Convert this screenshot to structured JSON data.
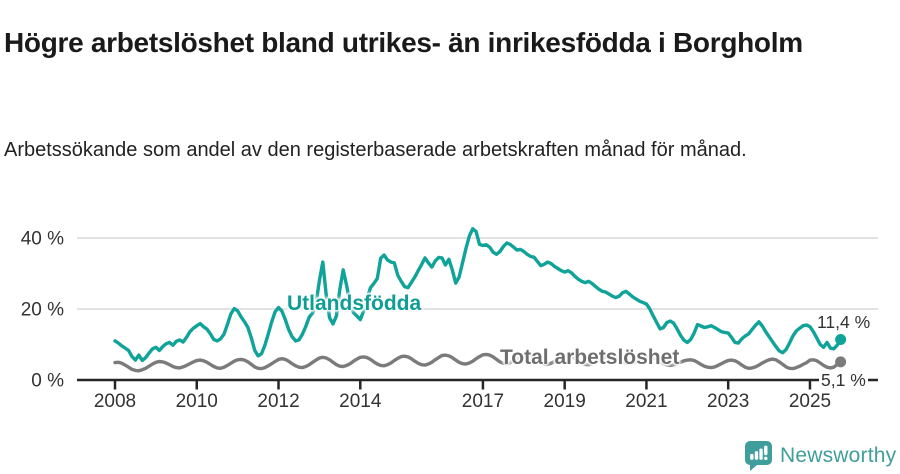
{
  "header": {
    "title": "Högre arbetslöshet bland utrikes- än inrikesfödda i Borgholm",
    "subtitle": "Arbetssökande som andel av den registerbaserade arbetskraften månad för månad."
  },
  "chart_data": {
    "type": "line",
    "title": "Högre arbetslöshet bland utrikes- än inrikesfödda i Borgholm",
    "ylabel": "",
    "xlabel": "",
    "unit": "%",
    "x_start_year": 2008,
    "x_step": "month",
    "x_end": "2025-10",
    "ylim": [
      0,
      47
    ],
    "grid": "horizontal",
    "y_ticks": [
      0,
      20,
      40
    ],
    "y_tick_labels": [
      "0 %",
      "20 %",
      "40 %"
    ],
    "x_tick_years": [
      2008,
      2010,
      2012,
      2014,
      2017,
      2019,
      2021,
      2023,
      2025
    ],
    "x_tick_labels": [
      "2008",
      "2010",
      "2012",
      "2014",
      "2017",
      "2019",
      "2021",
      "2023",
      "2025"
    ],
    "axis_color": "#262626",
    "gridline_color": "#d9d9d9",
    "tick_label_color": "#333333",
    "series": [
      {
        "id": "utlandsfodda",
        "name": "Utlandsfödda",
        "color": "#10a39a",
        "end_label": "11,4 %",
        "end_value": 11.4,
        "values": [
          11.0,
          10.4,
          9.6,
          9.0,
          8.3,
          6.6,
          5.6,
          7.0,
          5.5,
          6.3,
          7.6,
          8.8,
          9.2,
          8.3,
          9.4,
          10.2,
          10.6,
          9.8,
          10.9,
          11.3,
          10.7,
          12.0,
          13.6,
          14.6,
          15.3,
          15.9,
          15.0,
          14.3,
          13.0,
          11.4,
          11.0,
          11.6,
          12.9,
          15.6,
          18.6,
          20.1,
          19.5,
          17.8,
          16.4,
          14.8,
          11.9,
          8.4,
          6.8,
          7.4,
          9.8,
          13.0,
          16.4,
          19.2,
          20.4,
          19.4,
          17.0,
          14.2,
          12.2,
          11.0,
          11.3,
          12.9,
          15.1,
          17.7,
          18.9,
          21.5,
          28.0,
          33.2,
          24.0,
          17.5,
          15.8,
          18.0,
          25.5,
          31.0,
          26.5,
          21.5,
          19.0,
          18.0,
          17.0,
          19.5,
          23.0,
          26.0,
          27.2,
          28.6,
          34.3,
          35.2,
          33.8,
          33.2,
          33.0,
          29.5,
          27.8,
          26.3,
          26.0,
          27.5,
          29.0,
          30.8,
          32.5,
          34.4,
          33.0,
          31.8,
          33.5,
          34.5,
          34.4,
          32.4,
          34.0,
          31.0,
          27.3,
          29.0,
          33.0,
          37.0,
          40.5,
          42.6,
          41.8,
          38.2,
          37.9,
          38.1,
          37.4,
          36.0,
          35.4,
          36.2,
          37.6,
          38.6,
          38.2,
          37.4,
          36.6,
          36.8,
          36.2,
          35.4,
          34.8,
          34.6,
          33.4,
          32.2,
          32.6,
          33.2,
          32.8,
          32.0,
          31.4,
          30.8,
          30.4,
          30.8,
          30.2,
          29.2,
          28.4,
          27.8,
          27.4,
          27.8,
          27.2,
          26.4,
          25.6,
          25.0,
          24.8,
          24.2,
          23.6,
          23.2,
          23.6,
          24.6,
          25.0,
          24.2,
          23.4,
          22.8,
          22.2,
          21.8,
          21.4,
          20.0,
          18.0,
          16.2,
          14.4,
          14.8,
          16.2,
          16.6,
          16.0,
          14.4,
          12.6,
          11.2,
          10.6,
          11.4,
          13.2,
          15.6,
          15.2,
          14.8,
          15.0,
          15.3,
          14.8,
          14.2,
          13.6,
          13.4,
          13.2,
          12.0,
          10.6,
          10.4,
          11.6,
          12.4,
          13.0,
          14.2,
          15.4,
          16.4,
          15.2,
          13.6,
          12.2,
          10.8,
          9.4,
          8.2,
          7.7,
          8.6,
          10.4,
          12.4,
          13.8,
          14.6,
          15.3,
          15.5,
          15.0,
          13.6,
          11.8,
          10.0,
          9.2,
          10.6,
          9.0,
          8.8,
          9.8,
          11.4
        ]
      },
      {
        "id": "total",
        "name": "Total arbetslöshet",
        "color": "#7b7b7b",
        "end_label": "5,1 %",
        "end_value": 5.1,
        "values": [
          4.9,
          5.0,
          4.7,
          4.2,
          3.6,
          3.0,
          2.7,
          2.6,
          2.9,
          3.3,
          3.9,
          4.5,
          5.0,
          5.2,
          5.1,
          4.8,
          4.3,
          3.8,
          3.5,
          3.4,
          3.7,
          4.1,
          4.6,
          5.1,
          5.5,
          5.6,
          5.4,
          5.0,
          4.4,
          3.8,
          3.4,
          3.3,
          3.6,
          4.1,
          4.7,
          5.3,
          5.7,
          5.8,
          5.6,
          5.1,
          4.4,
          3.7,
          3.3,
          3.2,
          3.5,
          4.0,
          4.6,
          5.2,
          5.8,
          6.0,
          5.8,
          5.3,
          4.6,
          4.0,
          3.6,
          3.5,
          3.8,
          4.3,
          5.0,
          5.6,
          6.2,
          6.4,
          6.2,
          5.7,
          5.0,
          4.3,
          3.9,
          3.8,
          4.1,
          4.6,
          5.3,
          5.9,
          6.4,
          6.5,
          6.3,
          5.8,
          5.1,
          4.5,
          4.1,
          4.0,
          4.3,
          4.8,
          5.5,
          6.1,
          6.6,
          6.7,
          6.5,
          6.0,
          5.3,
          4.7,
          4.3,
          4.2,
          4.5,
          5.0,
          5.7,
          6.3,
          6.9,
          7.0,
          6.8,
          6.3,
          5.6,
          5.0,
          4.6,
          4.5,
          4.8,
          5.3,
          6.0,
          6.6,
          7.1,
          7.2,
          7.0,
          6.5,
          5.8,
          5.1,
          4.7,
          4.6,
          4.9,
          5.4,
          6.0,
          6.5,
          6.9,
          7.0,
          6.8,
          6.3,
          5.6,
          4.9,
          4.5,
          4.4,
          4.7,
          5.2,
          5.8,
          6.3,
          6.7,
          6.8,
          6.6,
          6.1,
          5.4,
          4.8,
          4.4,
          4.3,
          4.6,
          5.0,
          5.6,
          6.1,
          6.5,
          6.6,
          6.5,
          6.2,
          5.7,
          5.2,
          4.8,
          4.7,
          4.9,
          5.2,
          5.7,
          6.1,
          6.4,
          6.5,
          6.3,
          5.8,
          5.2,
          4.6,
          4.2,
          4.1,
          4.3,
          4.6,
          5.0,
          5.4,
          5.6,
          5.7,
          5.5,
          5.0,
          4.4,
          3.9,
          3.6,
          3.5,
          3.7,
          4.1,
          4.6,
          5.1,
          5.5,
          5.6,
          5.4,
          4.9,
          4.2,
          3.6,
          3.3,
          3.4,
          3.7,
          4.2,
          4.8,
          5.3,
          5.7,
          5.9,
          5.7,
          5.1,
          4.4,
          3.7,
          3.3,
          3.2,
          3.5,
          3.9,
          4.4,
          4.9,
          5.6,
          5.7,
          5.4,
          4.8,
          4.1,
          3.6,
          3.4,
          3.6,
          4.4,
          5.1
        ]
      }
    ]
  },
  "footer": {
    "brand": "Newsworthy",
    "logo_icon": "newsworthy-speech-bubble-bar-chart-icon",
    "brand_color": "#3f9e9b"
  }
}
